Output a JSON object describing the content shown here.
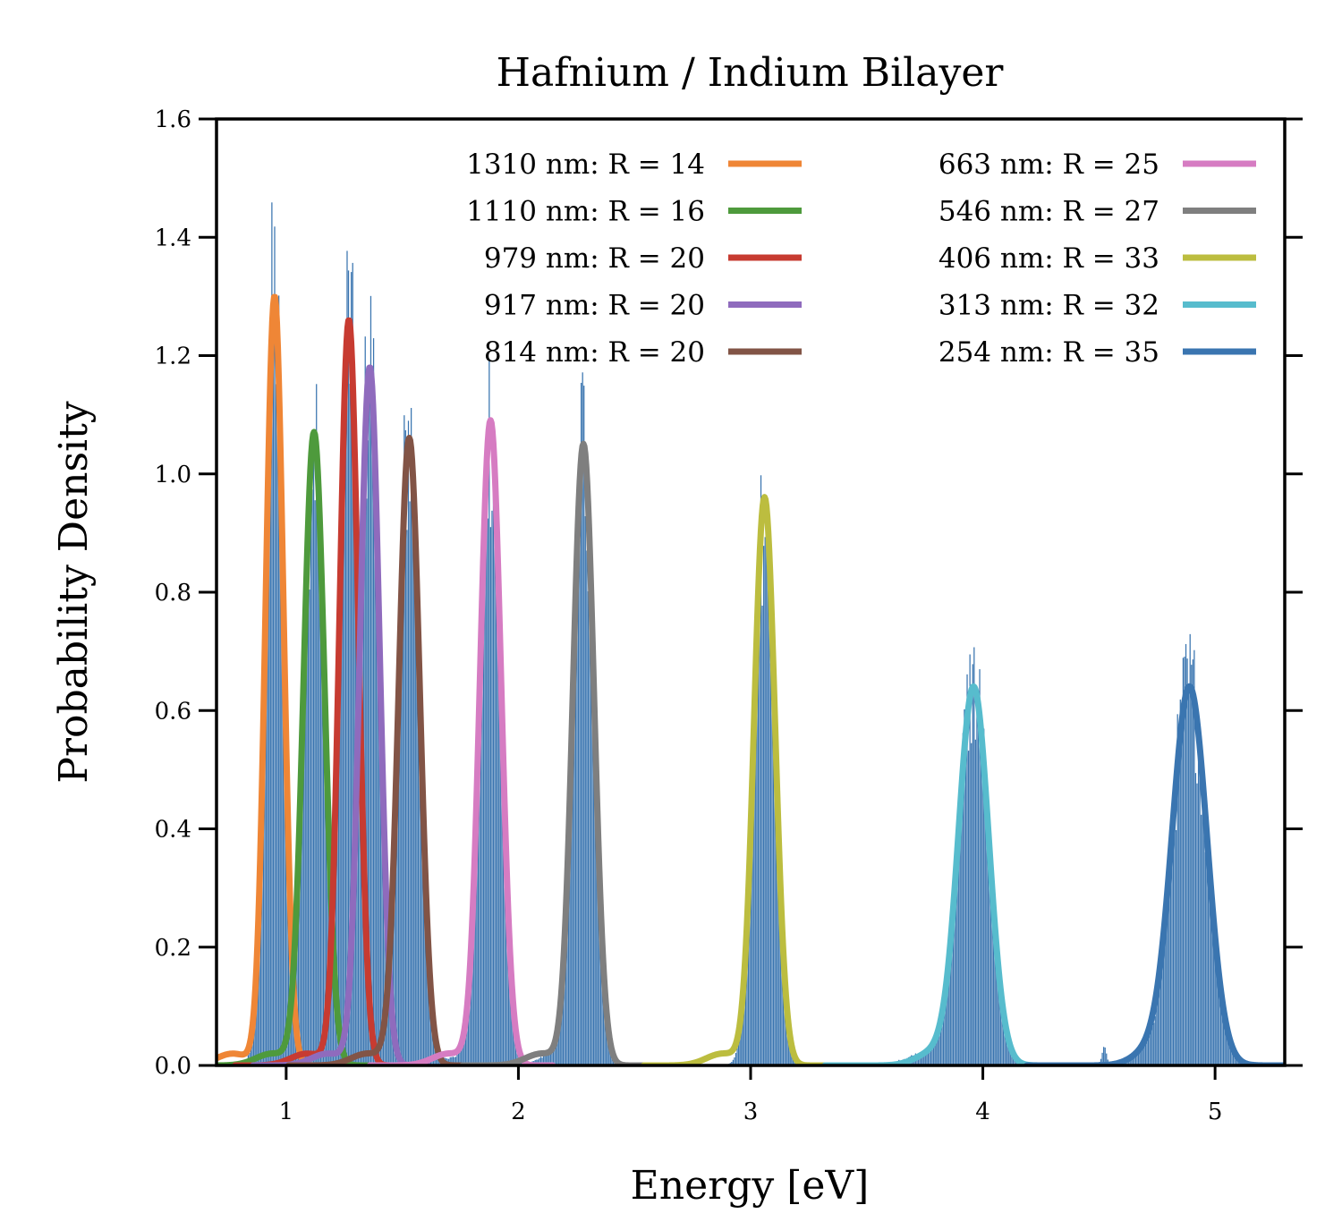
{
  "chart_data": {
    "type": "line",
    "title": "Hafnium / Indium Bilayer",
    "xlabel": "Energy [eV]",
    "ylabel": "Probability Density",
    "xlim": [
      0.7,
      5.3
    ],
    "ylim": [
      0.0,
      1.6
    ],
    "xticks": [
      1,
      2,
      3,
      4,
      5
    ],
    "yticks": [
      0.0,
      0.2,
      0.4,
      0.6,
      0.8,
      1.0,
      1.2,
      1.4,
      1.6
    ],
    "xtick_labels": [
      "1",
      "2",
      "3",
      "4",
      "5"
    ],
    "ytick_labels": [
      "0.0",
      "0.2",
      "0.4",
      "0.6",
      "0.8",
      "1.0",
      "1.2",
      "1.4",
      "1.6"
    ],
    "legend_position": "top-right",
    "histogram": {
      "description": "measured event energies (blue histogram behind curves)",
      "color": "#3a75b0"
    },
    "series": [
      {
        "label": "1310 nm:  R = 14",
        "color": "#ef8636",
        "center": 0.95,
        "peak": 1.3,
        "sigma": 0.038
      },
      {
        "label": "1110 nm:  R = 16",
        "color": "#4e9a3c",
        "center": 1.12,
        "peak": 1.07,
        "sigma": 0.045
      },
      {
        "label": "979 nm:  R = 20",
        "color": "#c73b31",
        "center": 1.27,
        "peak": 1.26,
        "sigma": 0.04
      },
      {
        "label": "917 nm:  R = 20",
        "color": "#8f6bbd",
        "center": 1.36,
        "peak": 1.18,
        "sigma": 0.042
      },
      {
        "label": "814 nm:  R = 20",
        "color": "#825446",
        "center": 1.53,
        "peak": 1.06,
        "sigma": 0.045
      },
      {
        "label": "663 nm:  R = 25",
        "color": "#d67cc2",
        "center": 1.88,
        "peak": 1.09,
        "sigma": 0.045
      },
      {
        "label": "546 nm:  R = 27",
        "color": "#7f7f7f",
        "center": 2.28,
        "peak": 1.05,
        "sigma": 0.045
      },
      {
        "label": "406 nm:  R = 33",
        "color": "#bcbd3f",
        "center": 3.06,
        "peak": 0.96,
        "sigma": 0.045
      },
      {
        "label": "313 nm:  R = 32",
        "color": "#57bccd",
        "center": 3.96,
        "peak": 0.64,
        "sigma": 0.065
      },
      {
        "label": "254 nm:  R = 35",
        "color": "#3a75b0",
        "center": 4.89,
        "peak": 0.64,
        "sigma": 0.075
      }
    ]
  }
}
